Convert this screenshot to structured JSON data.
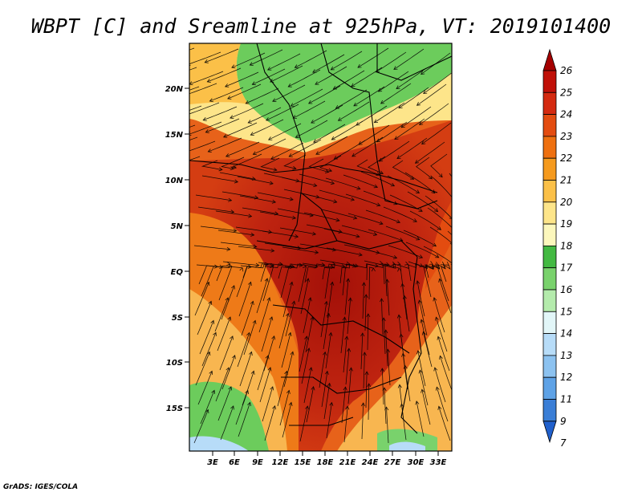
{
  "title": "WBPT [C] and Sreamline at 925hPa, VT: 2019101400",
  "footer": "GrADS: IGES/COLA",
  "y_axis_labels": [
    "20N",
    "15N",
    "10N",
    "5N",
    "EQ",
    "5S",
    "10S",
    "15S"
  ],
  "x_axis_labels": [
    "3E",
    "6E",
    "9E",
    "12E",
    "15E",
    "18E",
    "21E",
    "24E",
    "27E",
    "30E",
    "33E"
  ],
  "colorbar": {
    "labels": [
      "26",
      "25",
      "24",
      "23",
      "22",
      "21",
      "20",
      "19",
      "18",
      "17",
      "16",
      "15",
      "14",
      "13",
      "12",
      "11",
      "9",
      "7"
    ],
    "colors": [
      "#a50000",
      "#c01008",
      "#d42a10",
      "#e34c10",
      "#ee7010",
      "#f59a1e",
      "#fbc048",
      "#fde58a",
      "#fcf7bc",
      "#43b942",
      "#79d26c",
      "#b4ebac",
      "#e2f6f8",
      "#b7dcf8",
      "#8cc2f0",
      "#5ea2e6",
      "#3a7ed6",
      "#2060cc"
    ]
  },
  "colors": {
    "land_hot": "#b52010",
    "land_warm": "#e7621a",
    "land_mild": "#f8b650",
    "land_green": "#6ccc5c",
    "streamline": "#000000"
  }
}
